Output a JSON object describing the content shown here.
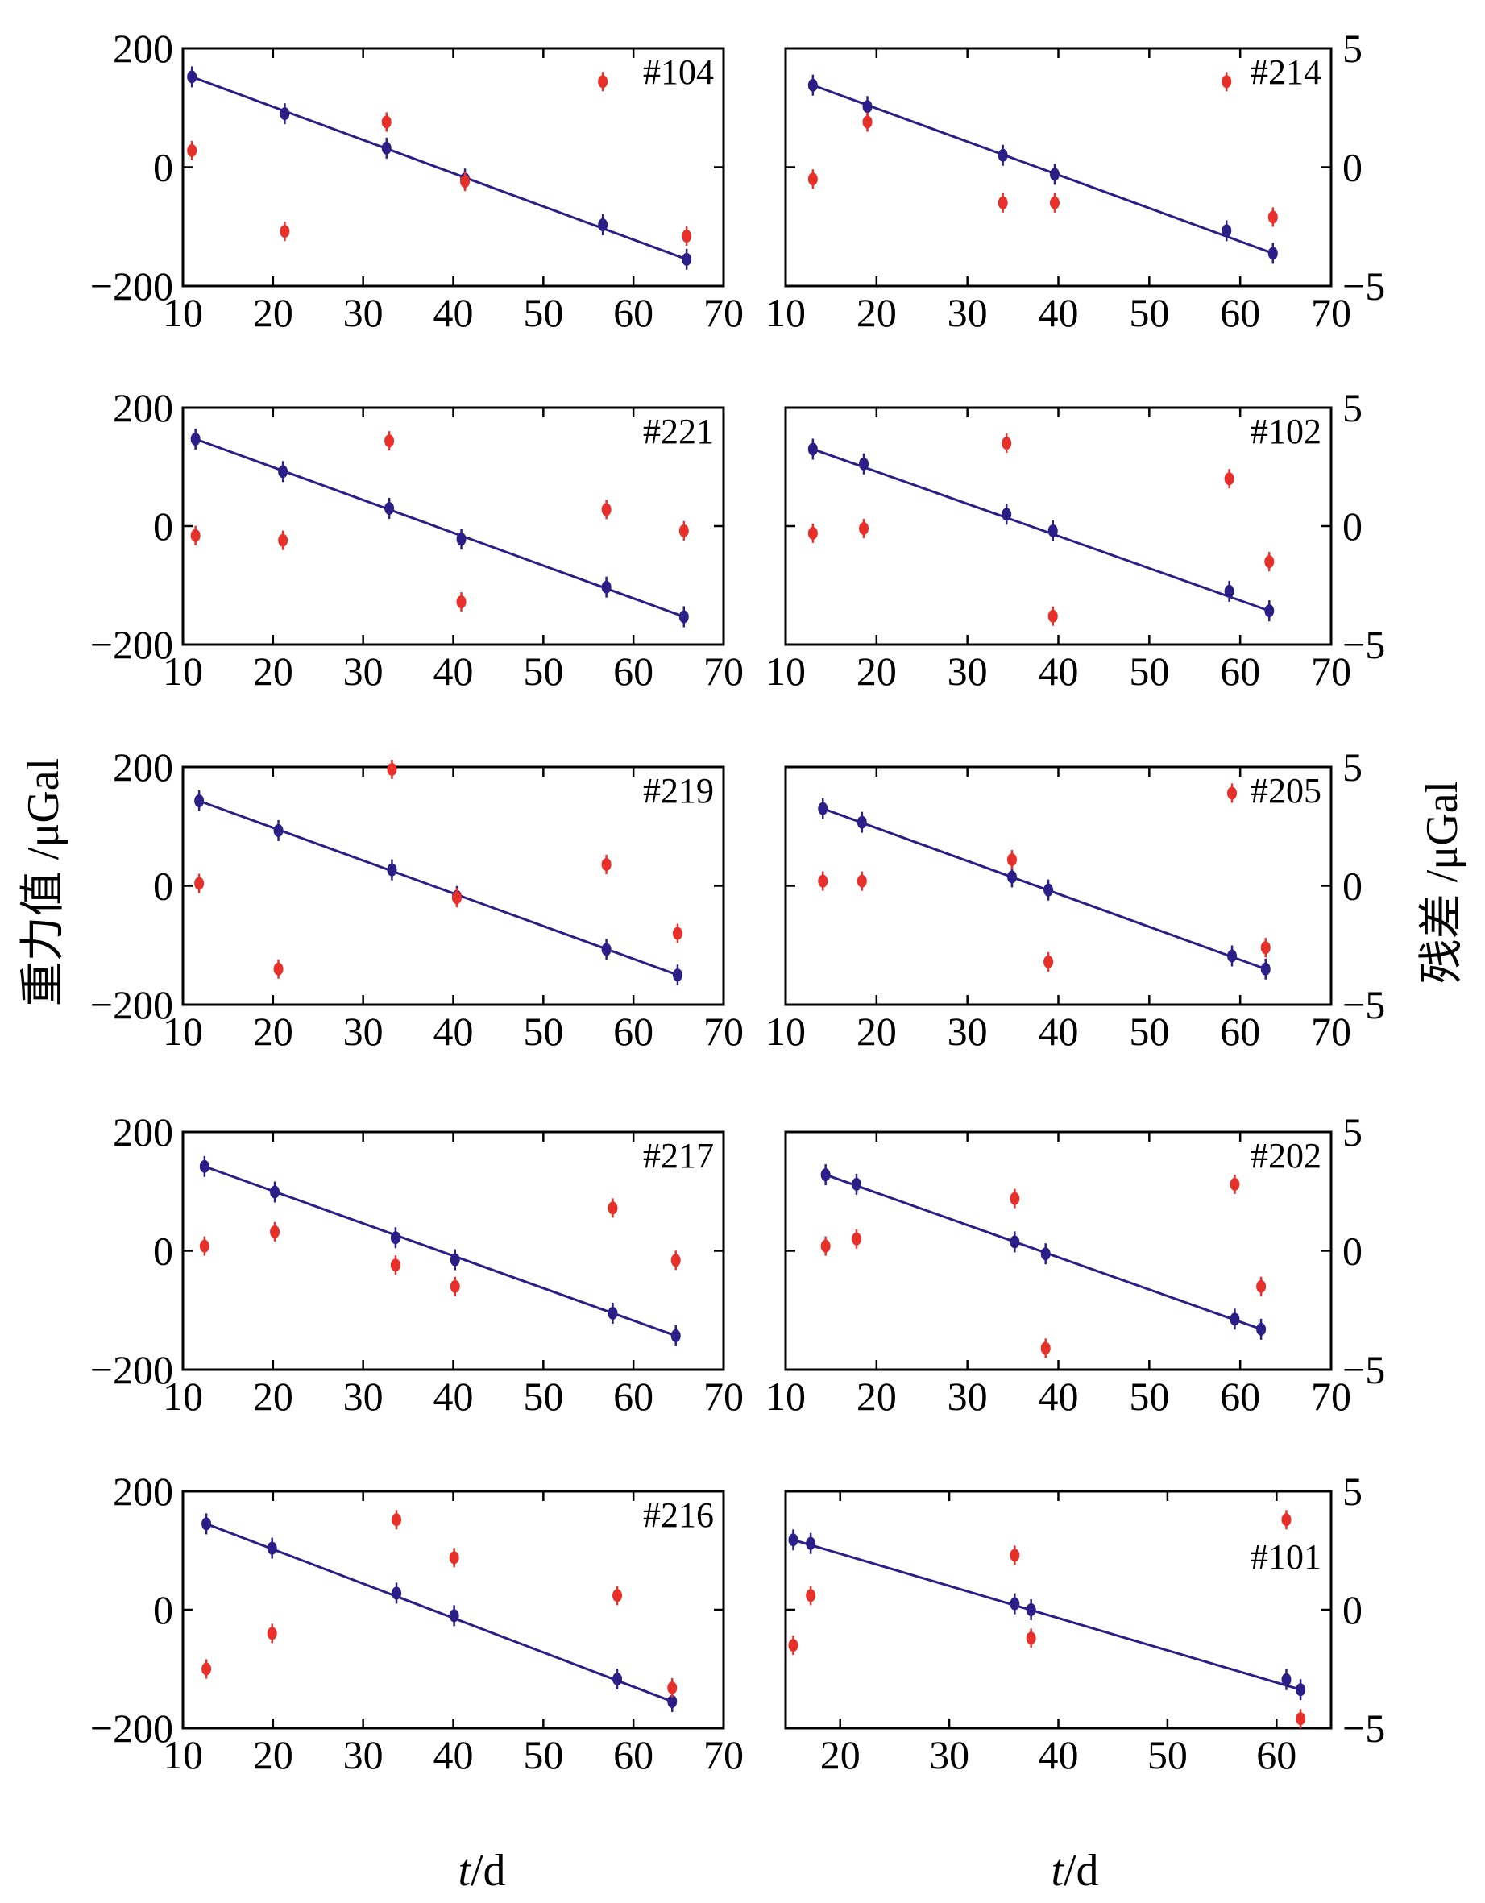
{
  "labels": {
    "left_ylabel": "重力值 /μGal",
    "right_ylabel": "残差 /μGal",
    "xlabel_t": "t",
    "xlabel_unit": "/d"
  },
  "colors": {
    "gravity": "#2b1f87",
    "residual": "#e8302a",
    "axis": "#000000"
  },
  "chart_data": [
    {
      "type": "scatter",
      "label": "#104",
      "xlim": [
        10,
        70
      ],
      "ylim": [
        -200,
        200
      ],
      "xticks": [
        10,
        20,
        30,
        40,
        50,
        60,
        70
      ],
      "yticks": [
        -200,
        0,
        200
      ],
      "gravity": [
        [
          11,
          152
        ],
        [
          21.3,
          90
        ],
        [
          32.6,
          32
        ],
        [
          41.3,
          -20
        ],
        [
          56.6,
          -97
        ],
        [
          65.9,
          -155
        ]
      ],
      "fit": [
        [
          11,
          152
        ],
        [
          65.9,
          -155
        ]
      ],
      "residual": [
        [
          11,
          0.7
        ],
        [
          21.3,
          -2.7
        ],
        [
          32.6,
          1.9
        ],
        [
          41.3,
          -0.6
        ],
        [
          56.6,
          3.6
        ],
        [
          65.9,
          -2.9
        ]
      ]
    },
    {
      "type": "scatter",
      "label": "#214",
      "xlim": [
        10,
        70
      ],
      "ylim": [
        -5,
        5
      ],
      "xticks": [
        10,
        20,
        30,
        40,
        50,
        60,
        70
      ],
      "yticks": [
        -5,
        0,
        5
      ],
      "gravity": [
        [
          13,
          138
        ],
        [
          19,
          102
        ],
        [
          33.9,
          20
        ],
        [
          39.6,
          -12
        ],
        [
          58.5,
          -107
        ],
        [
          63.6,
          -145
        ]
      ],
      "fit": [
        [
          13,
          138
        ],
        [
          63.6,
          -145
        ]
      ],
      "residual": [
        [
          13,
          -0.5
        ],
        [
          19,
          1.9
        ],
        [
          33.9,
          -1.5
        ],
        [
          39.6,
          -1.5
        ],
        [
          58.5,
          3.6
        ],
        [
          63.6,
          -2.1
        ]
      ]
    },
    {
      "type": "scatter",
      "label": "#221",
      "xlim": [
        10,
        70
      ],
      "ylim": [
        -200,
        200
      ],
      "xticks": [
        10,
        20,
        30,
        40,
        50,
        60,
        70
      ],
      "yticks": [
        -200,
        0,
        200
      ],
      "gravity": [
        [
          11.4,
          147
        ],
        [
          21.1,
          92
        ],
        [
          32.9,
          30
        ],
        [
          40.9,
          -22
        ],
        [
          57,
          -103
        ],
        [
          65.6,
          -153
        ]
      ],
      "fit": [
        [
          11.4,
          147
        ],
        [
          65.6,
          -153
        ]
      ],
      "residual": [
        [
          11.4,
          -0.4
        ],
        [
          21.1,
          -0.6
        ],
        [
          32.9,
          3.6
        ],
        [
          40.9,
          -3.2
        ],
        [
          57,
          0.7
        ],
        [
          65.6,
          -0.2
        ]
      ]
    },
    {
      "type": "scatter",
      "label": "#102",
      "xlim": [
        10,
        70
      ],
      "ylim": [
        -5,
        5
      ],
      "xticks": [
        10,
        20,
        30,
        40,
        50,
        60,
        70
      ],
      "yticks": [
        -5,
        0,
        5
      ],
      "gravity": [
        [
          13,
          130
        ],
        [
          18.6,
          105
        ],
        [
          34.3,
          20
        ],
        [
          39.4,
          -8
        ],
        [
          58.8,
          -110
        ],
        [
          63.2,
          -143
        ]
      ],
      "fit": [
        [
          13,
          130
        ],
        [
          63.2,
          -143
        ]
      ],
      "residual": [
        [
          13,
          -0.3
        ],
        [
          18.6,
          -0.1
        ],
        [
          34.3,
          3.5
        ],
        [
          39.4,
          -3.8
        ],
        [
          58.8,
          2.0
        ],
        [
          63.2,
          -1.5
        ]
      ]
    },
    {
      "type": "scatter",
      "label": "#219",
      "xlim": [
        10,
        70
      ],
      "ylim": [
        -200,
        200
      ],
      "xticks": [
        10,
        20,
        30,
        40,
        50,
        60,
        70
      ],
      "yticks": [
        -200,
        0,
        200
      ],
      "gravity": [
        [
          11.8,
          143
        ],
        [
          20.6,
          93
        ],
        [
          33.2,
          27
        ],
        [
          40.4,
          -18
        ],
        [
          57,
          -107
        ],
        [
          64.9,
          -150
        ]
      ],
      "fit": [
        [
          11.8,
          143
        ],
        [
          64.9,
          -150
        ]
      ],
      "residual": [
        [
          11.8,
          0.1
        ],
        [
          20.6,
          -3.5
        ],
        [
          33.2,
          4.9
        ],
        [
          40.4,
          -0.5
        ],
        [
          57,
          0.9
        ],
        [
          64.9,
          -2.0
        ]
      ]
    },
    {
      "type": "scatter",
      "label": "#205",
      "xlim": [
        10,
        70
      ],
      "ylim": [
        -5,
        5
      ],
      "xticks": [
        10,
        20,
        30,
        40,
        50,
        60,
        70
      ],
      "yticks": [
        -5,
        0,
        5
      ],
      "gravity": [
        [
          14.1,
          130
        ],
        [
          18.4,
          107
        ],
        [
          34.9,
          15
        ],
        [
          38.9,
          -7
        ],
        [
          59.1,
          -118
        ],
        [
          62.8,
          -140
        ]
      ],
      "fit": [
        [
          14.1,
          130
        ],
        [
          62.8,
          -140
        ]
      ],
      "residual": [
        [
          14.1,
          0.2
        ],
        [
          18.4,
          0.2
        ],
        [
          34.9,
          1.1
        ],
        [
          38.9,
          -3.2
        ],
        [
          59.1,
          3.9
        ],
        [
          62.8,
          -2.6
        ]
      ]
    },
    {
      "type": "scatter",
      "label": "#217",
      "xlim": [
        10,
        70
      ],
      "ylim": [
        -200,
        200
      ],
      "xticks": [
        10,
        20,
        30,
        40,
        50,
        60,
        70
      ],
      "yticks": [
        -200,
        0,
        200
      ],
      "gravity": [
        [
          12.4,
          142
        ],
        [
          20.2,
          99
        ],
        [
          33.6,
          22
        ],
        [
          40.2,
          -15
        ],
        [
          57.7,
          -105
        ],
        [
          64.7,
          -143
        ]
      ],
      "fit": [
        [
          12.4,
          142
        ],
        [
          64.7,
          -143
        ]
      ],
      "residual": [
        [
          12.4,
          0.2
        ],
        [
          20.2,
          0.8
        ],
        [
          33.6,
          -0.6
        ],
        [
          40.2,
          -1.5
        ],
        [
          57.7,
          1.8
        ],
        [
          64.7,
          -0.4
        ]
      ]
    },
    {
      "type": "scatter",
      "label": "#202",
      "xlim": [
        10,
        70
      ],
      "ylim": [
        -5,
        5
      ],
      "xticks": [
        10,
        20,
        30,
        40,
        50,
        60,
        70
      ],
      "yticks": [
        -5,
        0,
        5
      ],
      "gravity": [
        [
          14.4,
          128
        ],
        [
          17.8,
          112
        ],
        [
          35.2,
          15
        ],
        [
          38.6,
          -5
        ],
        [
          59.4,
          -115
        ],
        [
          62.3,
          -132
        ]
      ],
      "fit": [
        [
          14.4,
          128
        ],
        [
          62.3,
          -132
        ]
      ],
      "residual": [
        [
          14.4,
          0.2
        ],
        [
          17.8,
          0.5
        ],
        [
          35.2,
          2.2
        ],
        [
          38.6,
          -4.1
        ],
        [
          59.4,
          2.8
        ],
        [
          62.3,
          -1.5
        ]
      ]
    },
    {
      "type": "scatter",
      "label": "#216",
      "xlim": [
        10,
        70
      ],
      "ylim": [
        -200,
        200
      ],
      "xticks": [
        10,
        20,
        30,
        40,
        50,
        60,
        70
      ],
      "yticks": [
        -200,
        0,
        200
      ],
      "gravity": [
        [
          12.6,
          145
        ],
        [
          19.9,
          104
        ],
        [
          33.7,
          28
        ],
        [
          40.1,
          -10
        ],
        [
          58.2,
          -117
        ],
        [
          64.3,
          -155
        ]
      ],
      "fit": [
        [
          12.6,
          145
        ],
        [
          64.3,
          -155
        ]
      ],
      "residual": [
        [
          12.6,
          -2.5
        ],
        [
          19.9,
          -1.0
        ],
        [
          33.7,
          3.8
        ],
        [
          40.1,
          2.2
        ],
        [
          58.2,
          0.6
        ],
        [
          64.3,
          -3.3
        ]
      ]
    },
    {
      "type": "scatter",
      "label": "#101",
      "xlim": [
        15,
        65
      ],
      "ylim": [
        -5,
        5
      ],
      "xticks": [
        20,
        30,
        40,
        50,
        60
      ],
      "yticks": [
        -5,
        0,
        5
      ],
      "gravity": [
        [
          15.7,
          118
        ],
        [
          17.3,
          112
        ],
        [
          36,
          10
        ],
        [
          37.5,
          0
        ],
        [
          60.9,
          -118
        ],
        [
          62.2,
          -135
        ]
      ],
      "fit": [
        [
          15.7,
          118
        ],
        [
          62.2,
          -135
        ]
      ],
      "residual": [
        [
          15.7,
          -1.5
        ],
        [
          17.3,
          0.6
        ],
        [
          36,
          2.3
        ],
        [
          37.5,
          -1.2
        ],
        [
          60.9,
          3.8
        ],
        [
          62.2,
          -4.6
        ]
      ]
    }
  ]
}
